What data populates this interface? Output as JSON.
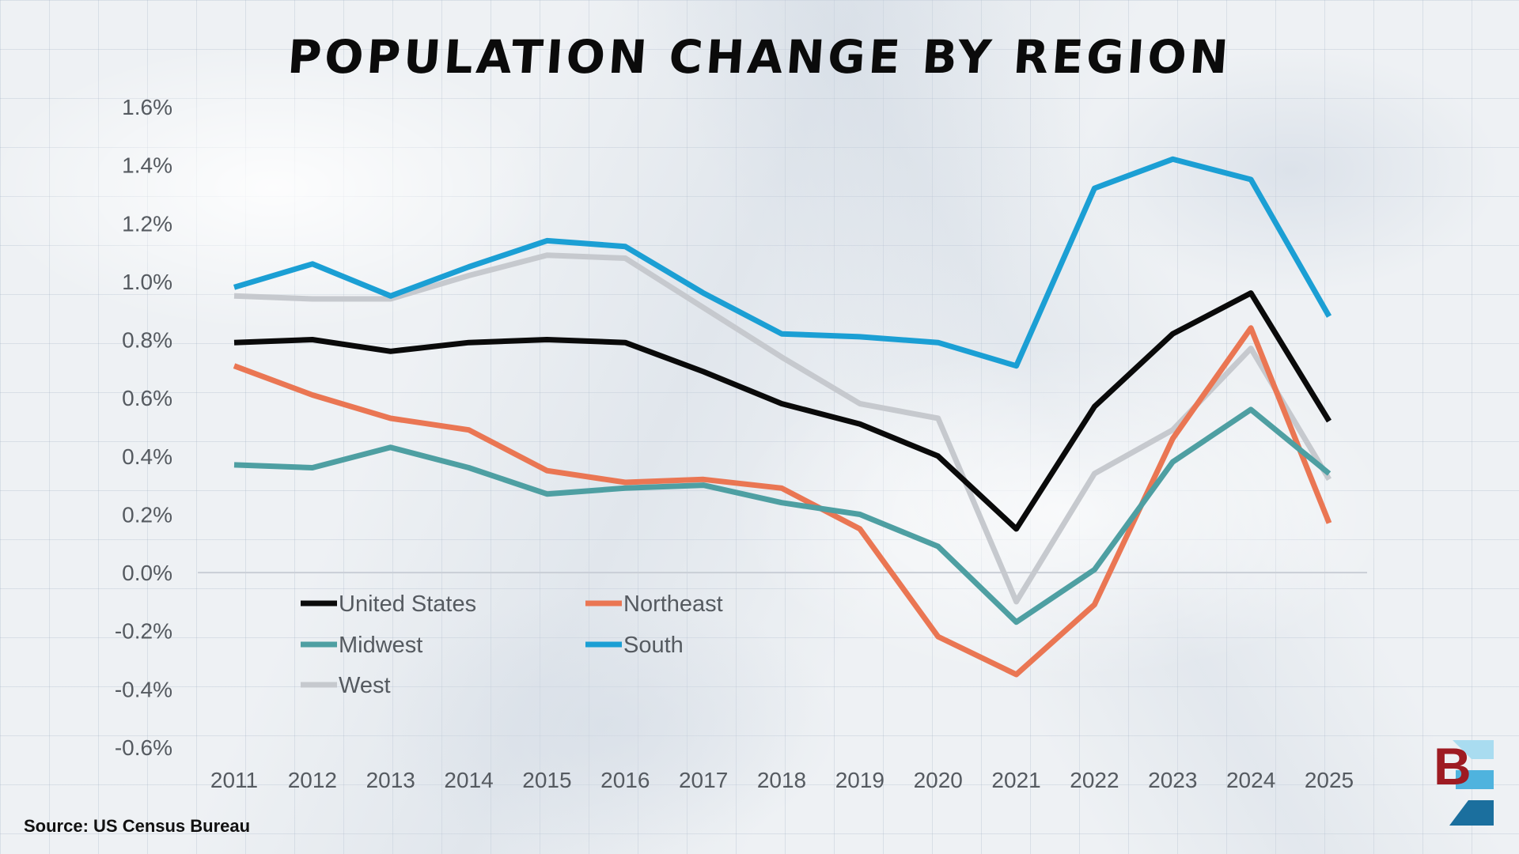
{
  "chart_data": {
    "type": "line",
    "title": "Population Change by Region",
    "xlabel": "",
    "ylabel": "",
    "ylim": [
      -0.6,
      1.6
    ],
    "yticks": [
      "1.6%",
      "1.4%",
      "1.2%",
      "1.0%",
      "0.8%",
      "0.6%",
      "0.4%",
      "0.2%",
      "0.0%",
      "-0.2%",
      "-0.4%",
      "-0.6%"
    ],
    "ytick_values": [
      1.6,
      1.4,
      1.2,
      1.0,
      0.8,
      0.6,
      0.4,
      0.2,
      0.0,
      -0.2,
      -0.4,
      -0.6
    ],
    "x": [
      "2011",
      "2012",
      "2013",
      "2014",
      "2015",
      "2016",
      "2017",
      "2018",
      "2019",
      "2020",
      "2021",
      "2022",
      "2023",
      "2024",
      "2025"
    ],
    "grid": false,
    "legend_position": "lower-left",
    "series": [
      {
        "name": "United States",
        "color": "#0a0a0a",
        "values": [
          0.79,
          0.8,
          0.76,
          0.79,
          0.8,
          0.79,
          0.69,
          0.58,
          0.51,
          0.4,
          0.15,
          0.57,
          0.82,
          0.96,
          0.52
        ]
      },
      {
        "name": "Northeast",
        "color": "#ea7653",
        "values": [
          0.71,
          0.61,
          0.53,
          0.49,
          0.35,
          0.31,
          0.32,
          0.29,
          0.15,
          -0.22,
          -0.35,
          -0.11,
          0.46,
          0.84,
          0.17
        ]
      },
      {
        "name": "Midwest",
        "color": "#4e9fa2",
        "values": [
          0.37,
          0.36,
          0.43,
          0.36,
          0.27,
          0.29,
          0.3,
          0.24,
          0.2,
          0.09,
          -0.17,
          0.01,
          0.38,
          0.56,
          0.34
        ]
      },
      {
        "name": "South",
        "color": "#1b9fd4",
        "values": [
          0.98,
          1.06,
          0.95,
          1.05,
          1.14,
          1.12,
          0.96,
          0.82,
          0.81,
          0.79,
          0.71,
          1.32,
          1.42,
          1.35,
          0.88
        ]
      },
      {
        "name": "West",
        "color": "#c6c9ce",
        "values": [
          0.95,
          0.94,
          0.94,
          1.02,
          1.09,
          1.08,
          0.91,
          0.74,
          0.58,
          0.53,
          -0.1,
          0.34,
          0.49,
          0.77,
          0.32
        ]
      }
    ]
  },
  "source": "Source: US Census Bureau",
  "logo_letter": "B"
}
